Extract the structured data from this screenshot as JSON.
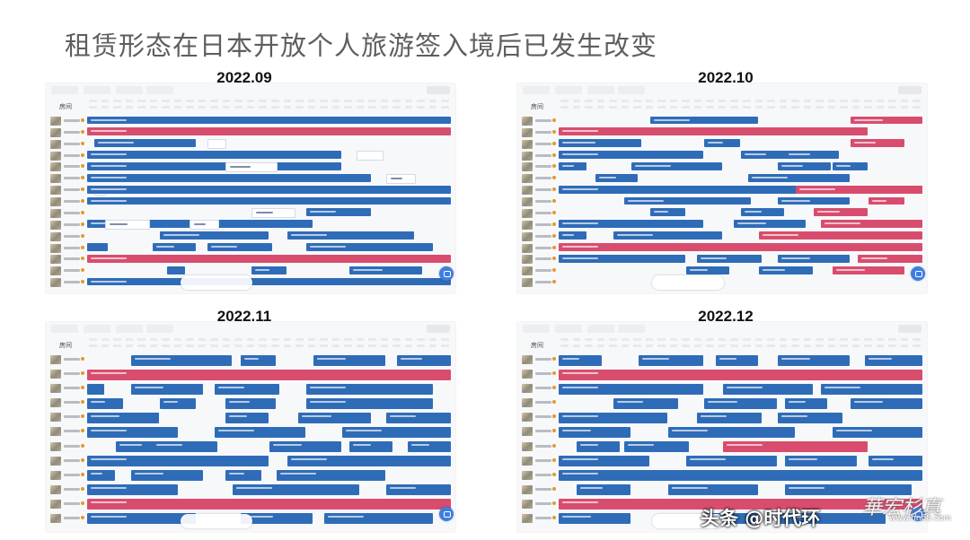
{
  "slide": {
    "title": "租赁形态在日本开放个人旅游签入境后已发生改变"
  },
  "panels": [
    {
      "label": "2022.09",
      "room_header": "房间"
    },
    {
      "label": "2022.10",
      "room_header": "房间"
    },
    {
      "label": "2022.11",
      "room_header": "房间"
    },
    {
      "label": "2022.12",
      "room_header": "房间"
    }
  ],
  "colors": {
    "booking_blue": "#2f6cb8",
    "booking_pink": "#d84d6e",
    "chat_button": "#3d7ee0"
  },
  "icons": [
    "chat-icon"
  ],
  "watermark": {
    "text": "头条 @时代环",
    "url": "www.hnb8.com"
  }
}
